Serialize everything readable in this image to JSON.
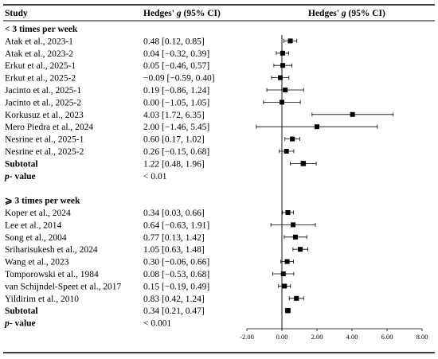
{
  "header": {
    "study": "Study",
    "ci_prefix": "Hedges'",
    "ci_g": "g",
    "ci_suffix": "(95% CI)",
    "plot_prefix": "Hedges'",
    "plot_g": "g",
    "plot_suffix": "(95% CI)"
  },
  "chart_data": {
    "type": "forest",
    "xlim": [
      -2.0,
      8.0
    ],
    "xticks": [
      "-2.00",
      "0.00",
      "2.00",
      "4.00",
      "6.00",
      "8.00"
    ],
    "reference_line": 0,
    "groups": [
      {
        "label": "< 3 times per week",
        "studies": [
          {
            "name": "Atak et al., 2023-1",
            "ci_text": "0.48 [0.12, 0.85]",
            "g": 0.48,
            "lo": 0.12,
            "hi": 0.85
          },
          {
            "name": "Atak et al., 2023-2",
            "ci_text": "0.04 [−0.32, 0.39]",
            "g": 0.04,
            "lo": -0.32,
            "hi": 0.39
          },
          {
            "name": "Erkut et al., 2025-1",
            "ci_text": "0.05 [−0.46, 0.57]",
            "g": 0.05,
            "lo": -0.46,
            "hi": 0.57
          },
          {
            "name": "Erkut et al., 2025-2",
            "ci_text": "−0.09 [−0.59, 0.40]",
            "g": -0.09,
            "lo": -0.59,
            "hi": 0.4
          },
          {
            "name": "Jacinto et al., 2025-1",
            "ci_text": "0.19 [−0.86, 1.24]",
            "g": 0.19,
            "lo": -0.86,
            "hi": 1.24
          },
          {
            "name": "Jacinto et al., 2025-2",
            "ci_text": "0.00 [−1.05, 1.05]",
            "g": 0.0,
            "lo": -1.05,
            "hi": 1.05
          },
          {
            "name": "Korkusuz et al., 2023",
            "ci_text": "4.03 [1.72, 6.35]",
            "g": 4.03,
            "lo": 1.72,
            "hi": 6.35
          },
          {
            "name": "Mero Piedra et al., 2024",
            "ci_text": "2.00 [−1.46, 5.45]",
            "g": 2.0,
            "lo": -1.46,
            "hi": 5.45
          },
          {
            "name": "Nesrine et al., 2025-1",
            "ci_text": "0.60 [0.17, 1.02]",
            "g": 0.6,
            "lo": 0.17,
            "hi": 1.02
          },
          {
            "name": "Nesrine et al., 2025-2",
            "ci_text": "0.26 [−0.15, 0.68]",
            "g": 0.26,
            "lo": -0.15,
            "hi": 0.68
          }
        ],
        "subtotal": {
          "name": "Subtotal",
          "ci_text": "1.22 [0.48, 1.96]",
          "g": 1.22,
          "lo": 0.48,
          "hi": 1.96
        },
        "pvalue": {
          "label_italic": "p",
          "label_rest": "- value",
          "text": "< 0.01"
        }
      },
      {
        "label": "⩾ 3 times per week",
        "studies": [
          {
            "name": "Koper et al., 2024",
            "ci_text": "0.34 [0.03, 0.66]",
            "g": 0.34,
            "lo": 0.03,
            "hi": 0.66
          },
          {
            "name": "Lee et al., 2014",
            "ci_text": "0.64 [−0.63, 1.91]",
            "g": 0.64,
            "lo": -0.63,
            "hi": 1.91
          },
          {
            "name": "Song et al., 2004",
            "ci_text": "0.77 [0.13, 1.42]",
            "g": 0.77,
            "lo": 0.13,
            "hi": 1.42
          },
          {
            "name": "Sriharisukesh et al., 2024",
            "ci_text": "1.05 [0.63, 1.48]",
            "g": 1.05,
            "lo": 0.63,
            "hi": 1.48
          },
          {
            "name": "Wang et al., 2023",
            "ci_text": "0.30 [−0.06, 0.66]",
            "g": 0.3,
            "lo": -0.06,
            "hi": 0.66
          },
          {
            "name": "Tomporowski et al., 1984",
            "ci_text": "0.08 [−0.53, 0.68]",
            "g": 0.08,
            "lo": -0.53,
            "hi": 0.68
          },
          {
            "name": "van Schijndel-Speet et al., 2017",
            "ci_text": "0.15 [−0.19, 0.49]",
            "g": 0.15,
            "lo": -0.19,
            "hi": 0.49
          },
          {
            "name": "Yildirim et al., 2010",
            "ci_text": "0.83 [0.42, 1.24]",
            "g": 0.83,
            "lo": 0.42,
            "hi": 1.24
          }
        ],
        "subtotal": {
          "name": "Subtotal",
          "ci_text": "0.34 [0.21, 0.47]",
          "g": 0.34,
          "lo": 0.21,
          "hi": 0.47
        },
        "pvalue": {
          "label_italic": "p",
          "label_rest": "- value",
          "text": "< 0.001"
        }
      }
    ]
  }
}
